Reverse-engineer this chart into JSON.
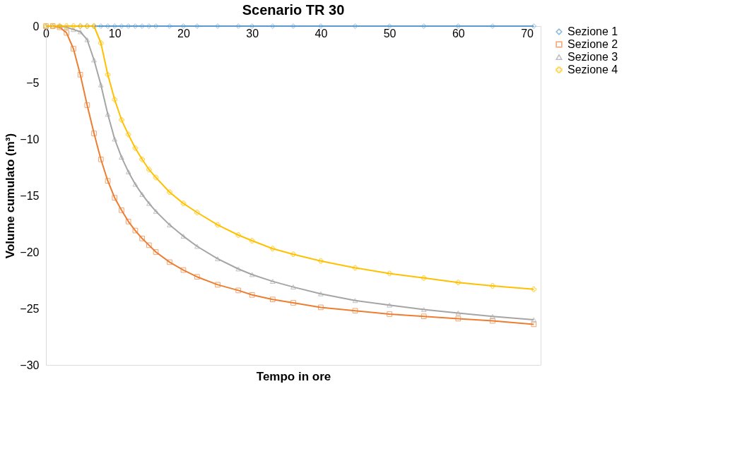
{
  "chart_data": {
    "type": "line",
    "title": "Scenario TR 30",
    "xlabel": "Tempo in ore",
    "ylabel": "Volume cumulato (m³)",
    "x": [
      0,
      1,
      2,
      3,
      4,
      5,
      6,
      7,
      8,
      9,
      10,
      11,
      12,
      13,
      14,
      15,
      16,
      18,
      20,
      22,
      25,
      28,
      30,
      33,
      36,
      40,
      45,
      50,
      55,
      60,
      65,
      71
    ],
    "series": [
      {
        "name": "Sezione 1",
        "color": "#5b9bd5",
        "marker": "diamond",
        "values": [
          null,
          null,
          null,
          null,
          null,
          0,
          0,
          0,
          0,
          0,
          0,
          0,
          0,
          0,
          0,
          0,
          0,
          0,
          0,
          0,
          0,
          0,
          0,
          0,
          0,
          0,
          0,
          0,
          0,
          0,
          0,
          0
        ]
      },
      {
        "name": "Sezione 2",
        "color": "#ed7d31",
        "marker": "square",
        "values": [
          0,
          0,
          -0.1,
          -0.6,
          -2.0,
          -4.3,
          -7.0,
          -9.5,
          -11.8,
          -13.7,
          -15.2,
          -16.3,
          -17.3,
          -18.1,
          -18.8,
          -19.4,
          -20.0,
          -20.9,
          -21.6,
          -22.2,
          -22.9,
          -23.4,
          -23.8,
          -24.2,
          -24.5,
          -24.9,
          -25.2,
          -25.5,
          -25.7,
          -25.9,
          -26.1,
          -26.4
        ]
      },
      {
        "name": "Sezione 3",
        "color": "#a5a5a5",
        "marker": "triangle",
        "values": [
          0,
          0,
          0,
          -0.1,
          -0.3,
          -0.5,
          -1.2,
          -3.0,
          -5.2,
          -7.8,
          -10.0,
          -11.6,
          -12.9,
          -14.0,
          -14.9,
          -15.7,
          -16.4,
          -17.6,
          -18.6,
          -19.5,
          -20.6,
          -21.5,
          -22.0,
          -22.6,
          -23.1,
          -23.7,
          -24.3,
          -24.7,
          -25.1,
          -25.4,
          -25.7,
          -26.0
        ]
      },
      {
        "name": "Sezione 4",
        "color": "#ffc000",
        "marker": "cross",
        "values": [
          0,
          0,
          0,
          0,
          0,
          0,
          0,
          0,
          -1.5,
          -4.3,
          -6.5,
          -8.3,
          -9.6,
          -10.8,
          -11.8,
          -12.7,
          -13.4,
          -14.7,
          -15.7,
          -16.5,
          -17.6,
          -18.5,
          -19.0,
          -19.7,
          -20.2,
          -20.8,
          -21.4,
          -21.9,
          -22.3,
          -22.7,
          -23.0,
          -23.3
        ]
      }
    ],
    "xlim": [
      0,
      72
    ],
    "xticks": [
      0,
      10,
      20,
      30,
      40,
      50,
      60,
      70
    ],
    "ylim": [
      -30,
      0
    ],
    "yticks": [
      -30,
      -25,
      -20,
      -15,
      -10,
      -5,
      0
    ],
    "grid": false,
    "legend": "right",
    "line_style": "solid"
  }
}
